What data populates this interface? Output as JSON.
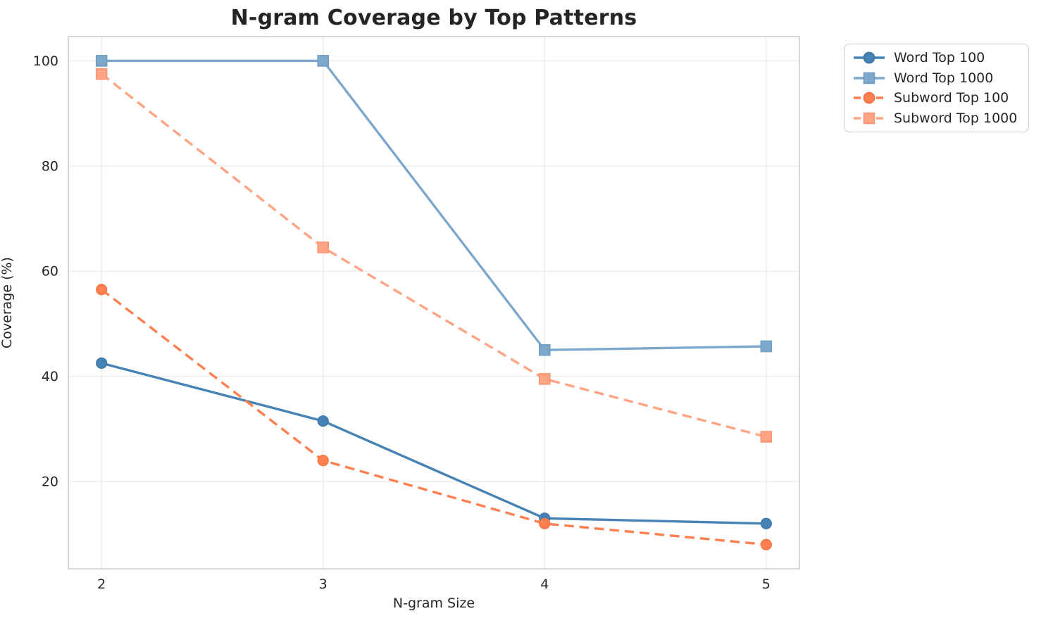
{
  "chart_data": {
    "type": "line",
    "title": "N-gram Coverage by Top Patterns",
    "xlabel": "N-gram Size",
    "ylabel": "Coverage (%)",
    "x": [
      2,
      3,
      4,
      5
    ],
    "xticks": [
      2,
      3,
      4,
      5
    ],
    "yticks": [
      20,
      40,
      60,
      80,
      100
    ],
    "xlim": [
      1.85,
      5.15
    ],
    "ylim": [
      3.4,
      104.6
    ],
    "grid": true,
    "legend_position": "outside-top-right",
    "series": [
      {
        "name": "Word Top 100",
        "values": [
          42.5,
          31.5,
          13.0,
          12.0
        ],
        "color": "#4682B4",
        "edge": "#3D74A3",
        "dash": "solid",
        "marker": "circle"
      },
      {
        "name": "Word Top 1000",
        "values": [
          100.0,
          100.0,
          45.0,
          45.7
        ],
        "color": "#7EA8CB",
        "edge": "#6E9CC2",
        "dash": "solid",
        "marker": "square"
      },
      {
        "name": "Subword Top 100",
        "values": [
          56.5,
          24.0,
          12.0,
          8.0
        ],
        "color": "#FF7F50",
        "edge": "#F0703F",
        "dash": "dashed",
        "marker": "circle"
      },
      {
        "name": "Subword Top 1000",
        "values": [
          97.5,
          64.5,
          39.5,
          28.5
        ],
        "color": "#FFA585",
        "edge": "#FA9471",
        "dash": "dashed",
        "marker": "square"
      }
    ],
    "colors": {
      "grid": "#ececec",
      "spine": "#cccccc",
      "text": "#262626",
      "title": "#242424"
    }
  }
}
